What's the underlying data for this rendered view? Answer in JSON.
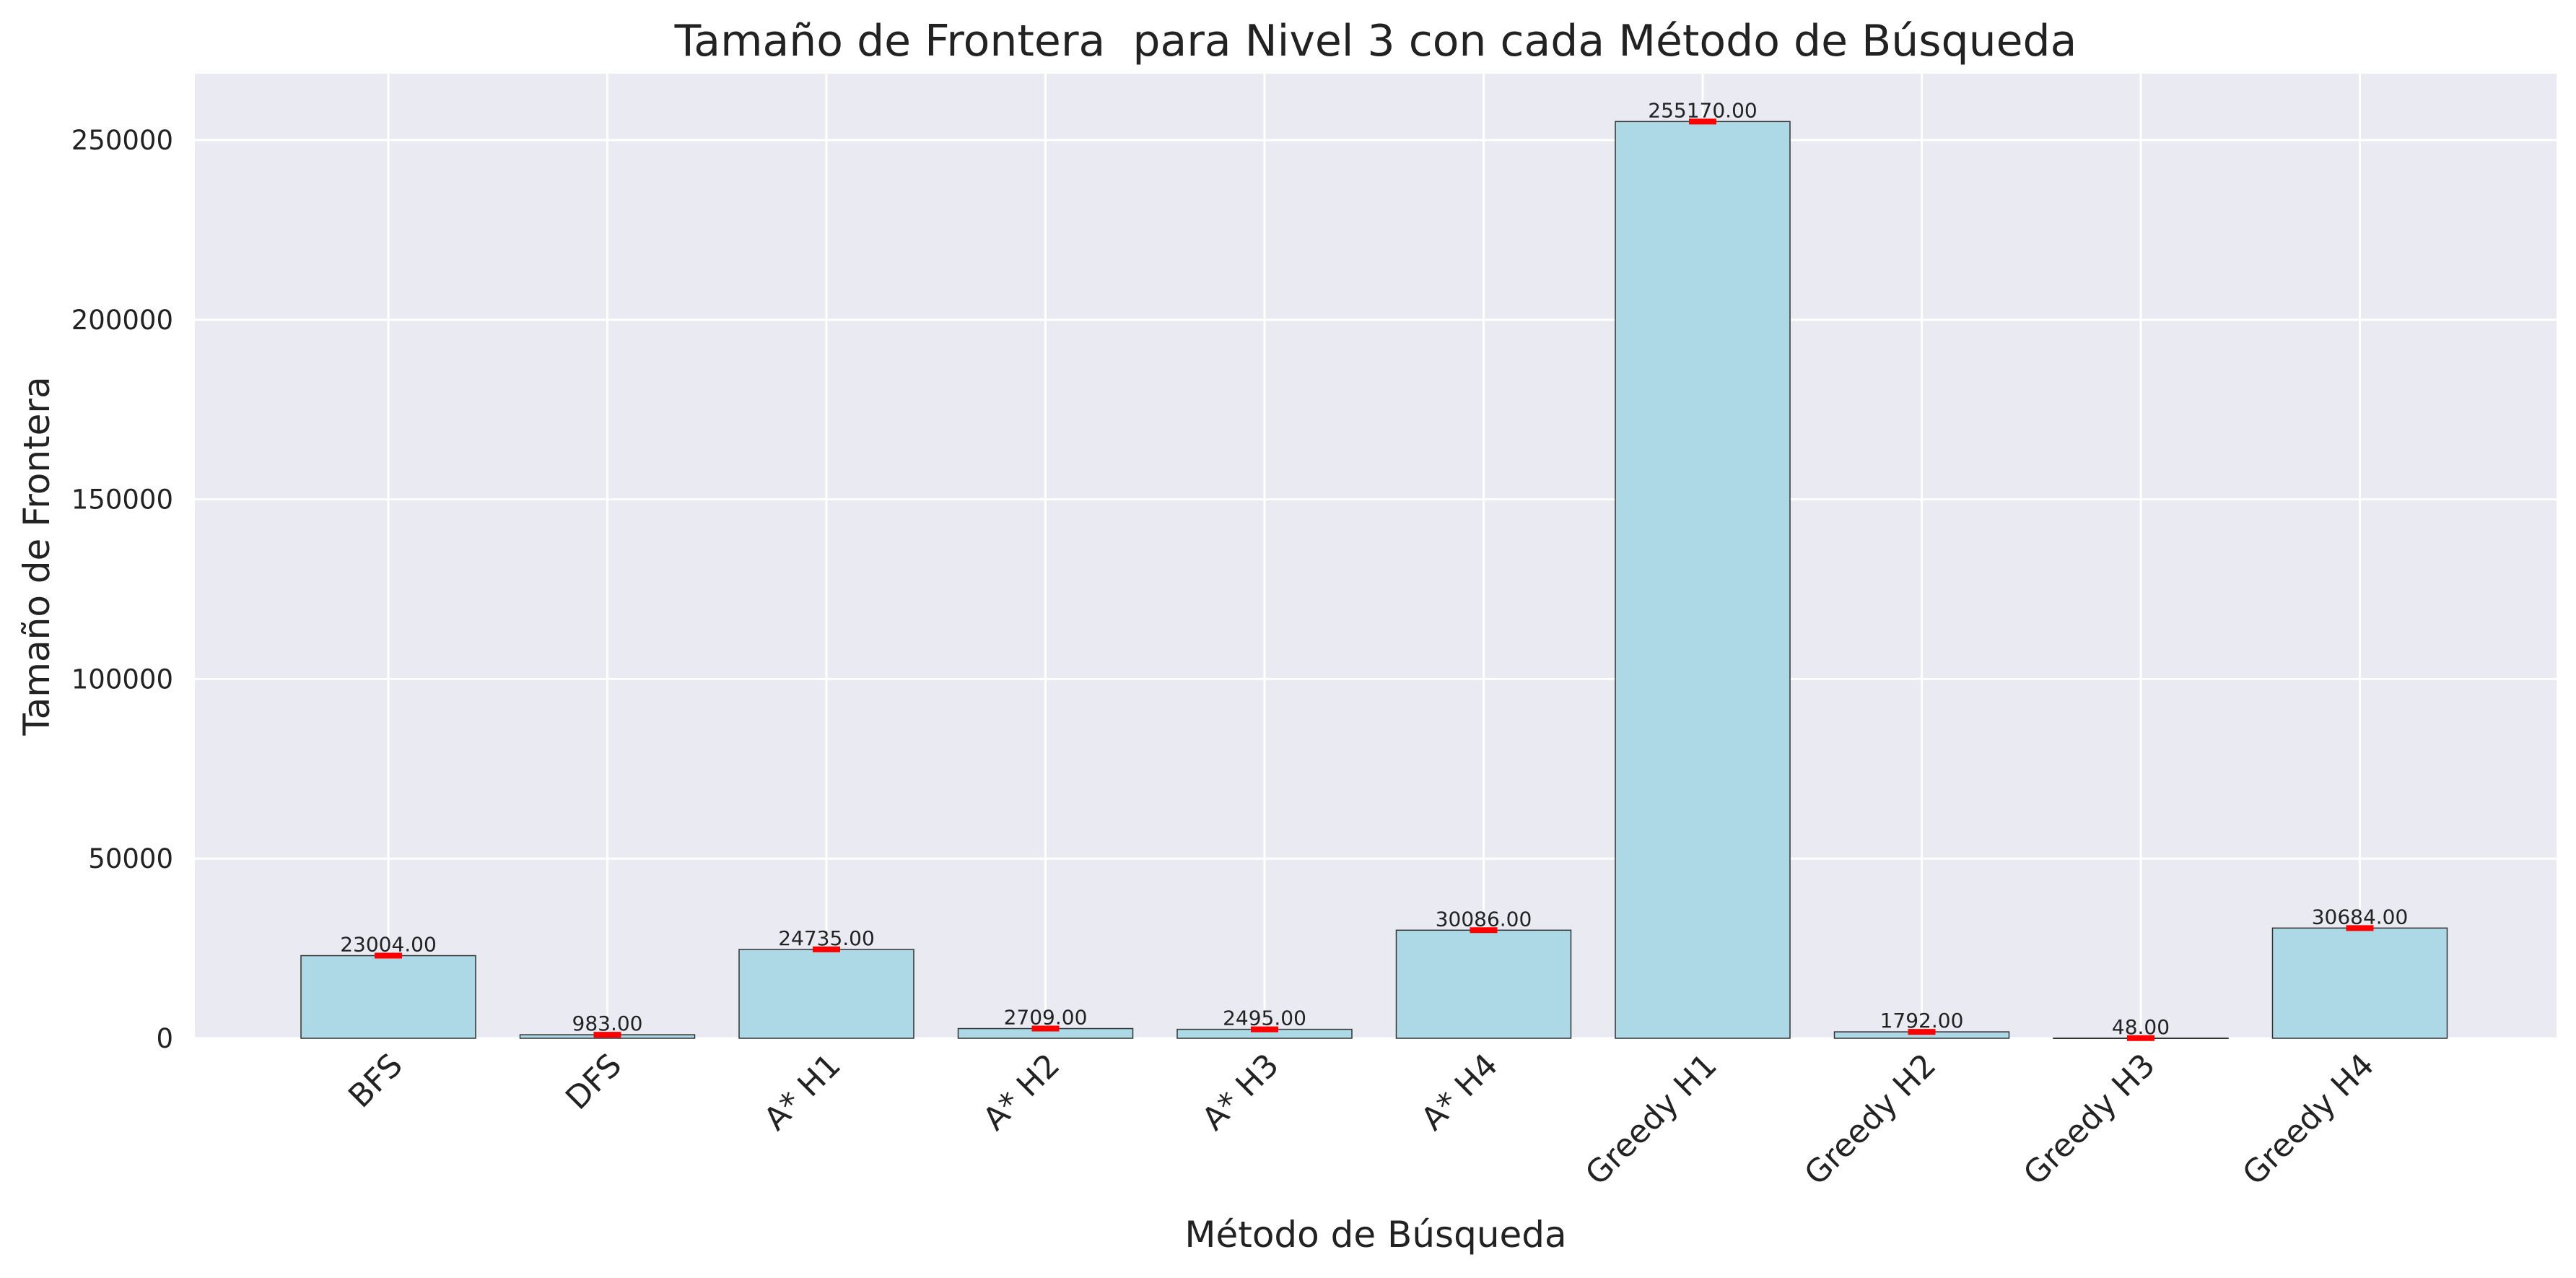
{
  "chart_data": {
    "type": "bar",
    "title": "Tamaño de Frontera  para Nivel 3 con cada Método de Búsqueda",
    "xlabel": "Método de Búsqueda",
    "ylabel": "Tamaño de Frontera",
    "categories": [
      "BFS",
      "DFS",
      "A* H1",
      "A* H2",
      "A* H3",
      "A* H4",
      "Greedy H1",
      "Greedy H2",
      "Greedy H3",
      "Greedy H4"
    ],
    "values": [
      23004.0,
      983.0,
      24735.0,
      2709.0,
      2495.0,
      30086.0,
      255170.0,
      1792.0,
      48.0,
      30684.0
    ],
    "value_labels": [
      "23004.00",
      "983.00",
      "24735.00",
      "2709.00",
      "2495.00",
      "30086.00",
      "255170.00",
      "1792.00",
      "48.00",
      "30684.00"
    ],
    "yticks": [
      0,
      50000,
      100000,
      150000,
      200000,
      250000
    ],
    "ytick_labels": [
      "0",
      "50000",
      "100000",
      "150000",
      "200000",
      "250000"
    ],
    "ylim": [
      0,
      268500
    ],
    "grid": true,
    "legend": "none",
    "bar_color": "#add8e6",
    "error_marker_color": "#ff0000",
    "background_color": "#eaeaf2"
  }
}
